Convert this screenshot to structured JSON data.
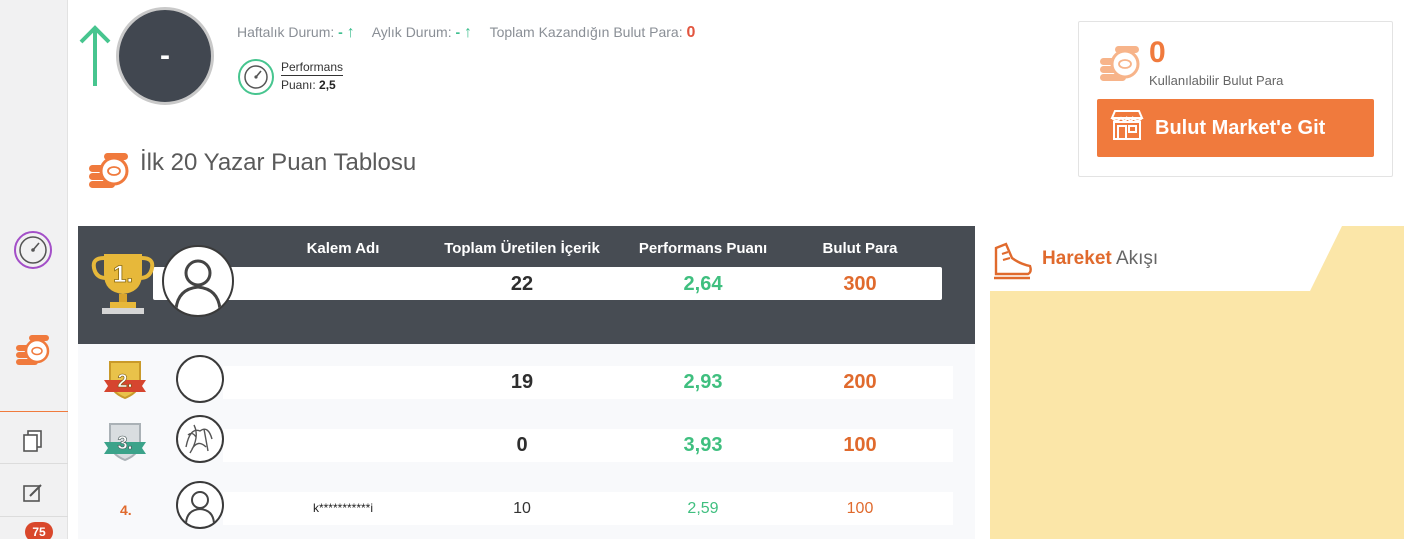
{
  "header": {
    "avatar_text": "-",
    "weekly_label": "Haftalık Durum:",
    "weekly_value": "-",
    "monthly_label": "Aylık Durum:",
    "monthly_value": "-",
    "total_label": "Toplam Kazandığın Bulut Para:",
    "total_value": "0",
    "perf_label_1": "Performans",
    "perf_label_2": "Puanı:",
    "perf_value": "2,5"
  },
  "wallet": {
    "amount": "0",
    "label": "Kullanılabilir Bulut Para",
    "button": "Bulut Market'e Git"
  },
  "section": {
    "title": "İlk 20 Yazar Puan Tablosu"
  },
  "leaderboard": {
    "columns": [
      "Kalem Adı",
      "Toplam Üretilen İçerik",
      "Performans Puanı",
      "Bulut Para"
    ],
    "rows": [
      {
        "rank": "1.",
        "name": "",
        "content": "22",
        "performance": "2,64",
        "coins": "300"
      },
      {
        "rank": "2.",
        "name": "",
        "content": "19",
        "performance": "2,93",
        "coins": "200"
      },
      {
        "rank": "3.",
        "name": "",
        "content": "0",
        "performance": "3,93",
        "coins": "100"
      },
      {
        "rank": "4.",
        "name": "k***********i",
        "content": "10",
        "performance": "2,59",
        "coins": "100"
      }
    ]
  },
  "feed": {
    "title_bold": "Hareket",
    "title_rest": " Akışı"
  },
  "sidebar": {
    "badge": "75"
  },
  "colors": {
    "accent_orange": "#f07a3d",
    "green": "#3fbf7f",
    "dark_panel": "#474c53",
    "feed_yellow": "#fbe6a8"
  }
}
